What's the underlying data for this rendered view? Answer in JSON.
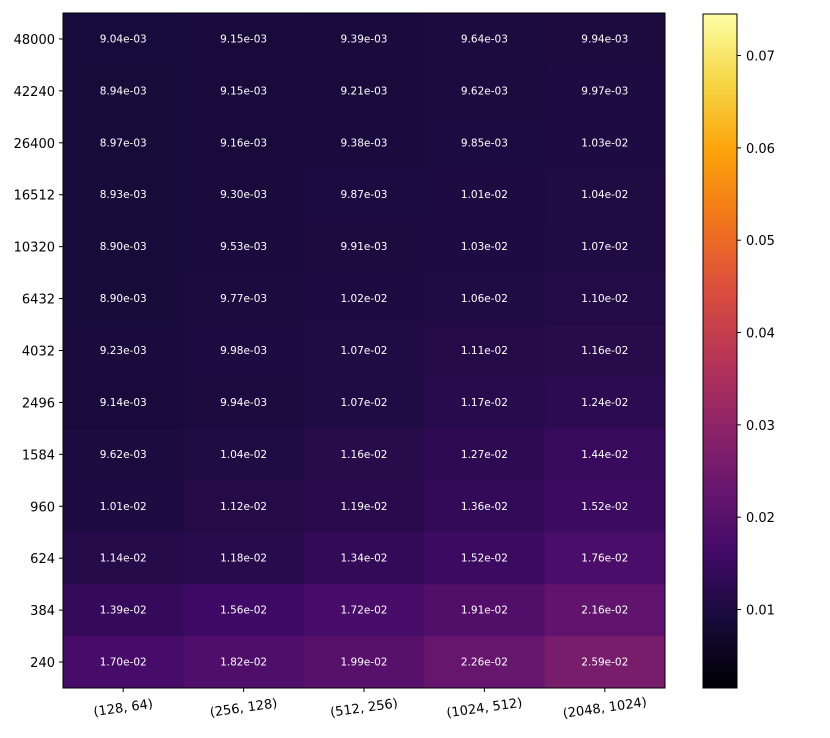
{
  "chart_data": {
    "type": "heatmap",
    "title": "",
    "xlabel": "",
    "ylabel": "",
    "colormap": "inferno",
    "x_categories": [
      "(128, 64)",
      "(256, 128)",
      "(512, 256)",
      "(1024, 512)",
      "(2048, 1024)"
    ],
    "y_categories": [
      "48000",
      "42240",
      "26400",
      "16512",
      "10320",
      "6432",
      "4032",
      "2496",
      "1584",
      "960",
      "624",
      "384",
      "240"
    ],
    "values": [
      [
        0.00904,
        0.00915,
        0.00939,
        0.00964,
        0.00994
      ],
      [
        0.00894,
        0.00915,
        0.00921,
        0.00962,
        0.00997
      ],
      [
        0.00897,
        0.00916,
        0.00938,
        0.00985,
        0.0103
      ],
      [
        0.00893,
        0.0093,
        0.00987,
        0.0101,
        0.0104
      ],
      [
        0.0089,
        0.00953,
        0.00991,
        0.0103,
        0.0107
      ],
      [
        0.0089,
        0.00977,
        0.0102,
        0.0106,
        0.011
      ],
      [
        0.00923,
        0.00998,
        0.0107,
        0.0111,
        0.0116
      ],
      [
        0.00914,
        0.00994,
        0.0107,
        0.0117,
        0.0124
      ],
      [
        0.00962,
        0.0104,
        0.0116,
        0.0127,
        0.0144
      ],
      [
        0.0101,
        0.0112,
        0.0119,
        0.0136,
        0.0152
      ],
      [
        0.0114,
        0.0118,
        0.0134,
        0.0152,
        0.0176
      ],
      [
        0.0139,
        0.0156,
        0.0172,
        0.0191,
        0.0216
      ],
      [
        0.017,
        0.0182,
        0.0199,
        0.0226,
        0.0259
      ]
    ],
    "labels": [
      [
        "9.04e-03",
        "9.15e-03",
        "9.39e-03",
        "9.64e-03",
        "9.94e-03"
      ],
      [
        "8.94e-03",
        "9.15e-03",
        "9.21e-03",
        "9.62e-03",
        "9.97e-03"
      ],
      [
        "8.97e-03",
        "9.16e-03",
        "9.38e-03",
        "9.85e-03",
        "1.03e-02"
      ],
      [
        "8.93e-03",
        "9.30e-03",
        "9.87e-03",
        "1.01e-02",
        "1.04e-02"
      ],
      [
        "8.90e-03",
        "9.53e-03",
        "9.91e-03",
        "1.03e-02",
        "1.07e-02"
      ],
      [
        "8.90e-03",
        "9.77e-03",
        "1.02e-02",
        "1.06e-02",
        "1.10e-02"
      ],
      [
        "9.23e-03",
        "9.98e-03",
        "1.07e-02",
        "1.11e-02",
        "1.16e-02"
      ],
      [
        "9.14e-03",
        "9.94e-03",
        "1.07e-02",
        "1.17e-02",
        "1.24e-02"
      ],
      [
        "9.62e-03",
        "1.04e-02",
        "1.16e-02",
        "1.27e-02",
        "1.44e-02"
      ],
      [
        "1.01e-02",
        "1.12e-02",
        "1.19e-02",
        "1.36e-02",
        "1.52e-02"
      ],
      [
        "1.14e-02",
        "1.18e-02",
        "1.34e-02",
        "1.52e-02",
        "1.76e-02"
      ],
      [
        "1.39e-02",
        "1.56e-02",
        "1.72e-02",
        "1.91e-02",
        "2.16e-02"
      ],
      [
        "1.70e-02",
        "1.82e-02",
        "1.99e-02",
        "2.26e-02",
        "2.59e-02"
      ]
    ],
    "colorbar": {
      "range": [
        0.0015,
        0.0745
      ],
      "ticks": [
        0.01,
        0.02,
        0.03,
        0.04,
        0.05,
        0.06,
        0.07
      ],
      "tick_labels": [
        "0.01",
        "0.02",
        "0.03",
        "0.04",
        "0.05",
        "0.06",
        "0.07"
      ]
    },
    "grid": false
  }
}
